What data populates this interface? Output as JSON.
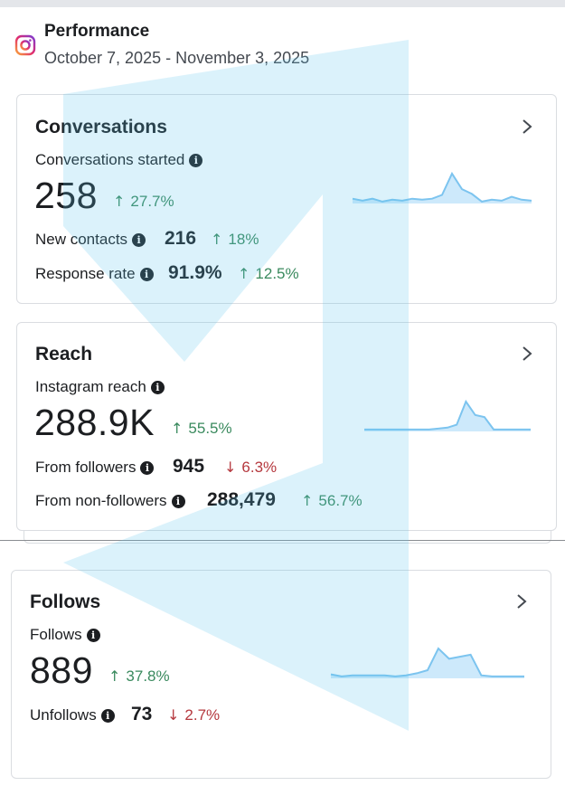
{
  "header": {
    "title": "Performance",
    "date_range": "October 7, 2025 - November 3, 2025",
    "icon": "instagram-icon"
  },
  "conversations": {
    "title": "Conversations",
    "metric_label": "Conversations started",
    "metric_value": "258",
    "metric_delta": "27.7%",
    "metric_trend": "up",
    "rows": [
      {
        "label": "New contacts",
        "value": "216",
        "delta": "18%",
        "trend": "up"
      },
      {
        "label": "Response rate",
        "value": "91.9%",
        "delta": "12.5%",
        "trend": "up"
      }
    ],
    "sparkline": [
      4,
      2,
      4,
      1,
      3,
      2,
      4,
      3,
      4,
      8,
      30,
      14,
      9,
      1,
      3,
      2,
      6,
      3,
      2
    ]
  },
  "reach": {
    "title": "Reach",
    "metric_label": "Instagram reach",
    "metric_value": "288.9K",
    "metric_delta": "55.5%",
    "metric_trend": "up",
    "rows": [
      {
        "label": "From followers",
        "value": "945",
        "delta": "6.3%",
        "trend": "down"
      },
      {
        "label": "From non-followers",
        "value": "288,479",
        "delta": "56.7%",
        "trend": "up"
      }
    ],
    "sparkline": [
      1,
      1,
      1,
      1,
      1,
      1,
      1,
      1,
      2,
      3,
      6,
      30,
      16,
      14,
      1,
      1,
      1,
      1,
      1
    ]
  },
  "follows": {
    "title": "Follows",
    "metric_label": "Follows",
    "metric_value": "889",
    "metric_delta": "37.8%",
    "metric_trend": "up",
    "rows": [
      {
        "label": "Unfollows",
        "value": "73",
        "delta": "2.7%",
        "trend": "down"
      }
    ],
    "sparkline": [
      3,
      1,
      2,
      2,
      2,
      2,
      1,
      2,
      4,
      7,
      28,
      18,
      20,
      22,
      2,
      1,
      1,
      1,
      1
    ]
  },
  "colors": {
    "spark_line": "#7cc4ef",
    "spark_fill": "#cde9fb",
    "up": "#3a8a5e",
    "down": "#b5383e"
  }
}
